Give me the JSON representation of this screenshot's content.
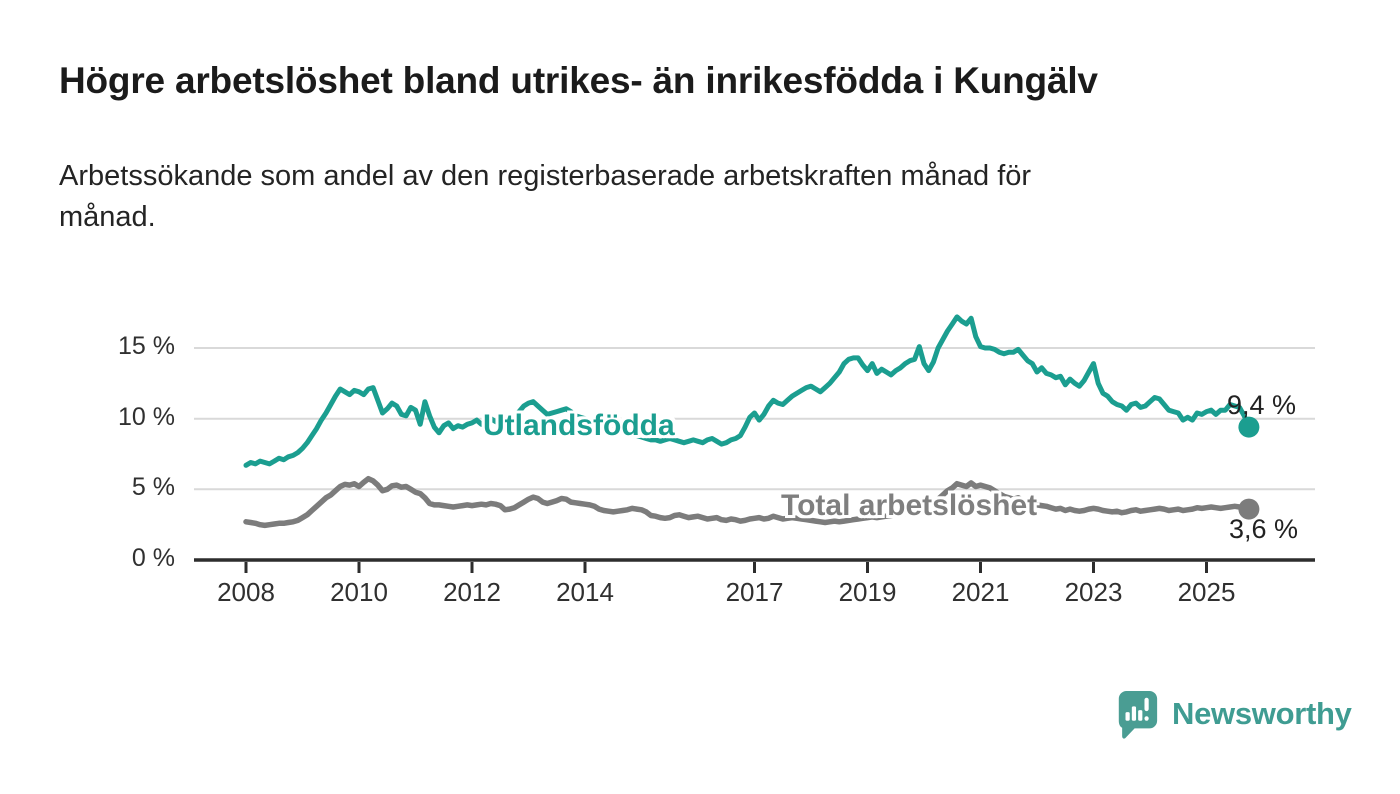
{
  "title": "Högre arbetslöshet bland utrikes- än inrikesfödda i Kungälv",
  "subtitle_lines": [
    "Arbetssökande som andel av den registerbaserade arbetskraften månad för",
    "månad."
  ],
  "logo": {
    "brand": "Newsworthy"
  },
  "colors": {
    "accent_teal": "#1b9e90",
    "series_gray": "#7c7c7c",
    "axis": "#2d2d2d",
    "gridline": "#d9d9d9",
    "logo_teal": "#4a9d93",
    "text_dark": "#1b1b1b"
  },
  "chart_data": {
    "type": "line",
    "frequency": "monthly",
    "x_start": "2008-01",
    "x_end": "2025-10",
    "xlabel": "",
    "ylabel": "",
    "ylim": [
      0,
      17.5
    ],
    "grid": "horizontal",
    "legend_position": "inline",
    "x_tick_years": [
      2008,
      2010,
      2012,
      2014,
      2017,
      2019,
      2021,
      2023,
      2025
    ],
    "x_tick_labels": [
      "2008",
      "2010",
      "2012",
      "2014",
      "2017",
      "2019",
      "2021",
      "2023",
      "2025"
    ],
    "y_ticks": [
      {
        "value": 0,
        "label": "0 %"
      },
      {
        "value": 5,
        "label": "5 %"
      },
      {
        "value": 10,
        "label": "10 %"
      },
      {
        "value": 15,
        "label": "15 %"
      }
    ],
    "series": [
      {
        "name": "Utlandsfödda",
        "color": "#1b9e90",
        "end_value": 9.4,
        "end_label": "9,4 %",
        "values": [
          6.7,
          6.9,
          6.8,
          7.0,
          6.9,
          6.8,
          7.0,
          7.2,
          7.1,
          7.3,
          7.4,
          7.6,
          7.9,
          8.3,
          8.8,
          9.3,
          9.9,
          10.4,
          11.0,
          11.6,
          12.1,
          11.9,
          11.7,
          12.0,
          11.9,
          11.7,
          12.1,
          12.2,
          11.3,
          10.4,
          10.7,
          11.1,
          10.9,
          10.3,
          10.2,
          10.8,
          10.6,
          9.6,
          11.2,
          10.2,
          9.4,
          9.0,
          9.5,
          9.7,
          9.3,
          9.5,
          9.4,
          9.6,
          9.7,
          9.9,
          9.6,
          9.9,
          10.0,
          9.8,
          9.6,
          9.8,
          10.0,
          10.2,
          10.5,
          10.9,
          11.1,
          11.2,
          10.9,
          10.6,
          10.3,
          10.4,
          10.5,
          10.6,
          10.7,
          10.5,
          10.2,
          10.1,
          10.0,
          9.9,
          9.7,
          9.5,
          9.4,
          9.3,
          9.2,
          9.1,
          9.0,
          9.0,
          8.9,
          8.8,
          8.7,
          8.6,
          8.5,
          8.5,
          8.4,
          8.5,
          8.6,
          8.5,
          8.4,
          8.3,
          8.4,
          8.5,
          8.4,
          8.3,
          8.5,
          8.6,
          8.4,
          8.2,
          8.3,
          8.5,
          8.6,
          8.8,
          9.4,
          10.1,
          10.4,
          9.9,
          10.3,
          10.9,
          11.3,
          11.1,
          11.0,
          11.3,
          11.6,
          11.8,
          12.0,
          12.2,
          12.3,
          12.1,
          11.9,
          12.2,
          12.5,
          12.9,
          13.3,
          13.9,
          14.2,
          14.3,
          14.3,
          13.8,
          13.4,
          13.9,
          13.2,
          13.5,
          13.3,
          13.1,
          13.4,
          13.6,
          13.9,
          14.1,
          14.2,
          15.1,
          13.9,
          13.4,
          14.0,
          15.0,
          15.6,
          16.2,
          16.7,
          17.2,
          16.9,
          16.7,
          17.1,
          15.8,
          15.1,
          15.0,
          15.0,
          14.9,
          14.7,
          14.6,
          14.7,
          14.7,
          14.9,
          14.5,
          14.1,
          13.9,
          13.3,
          13.6,
          13.2,
          13.1,
          12.9,
          13.0,
          12.4,
          12.8,
          12.5,
          12.3,
          12.7,
          13.3,
          13.9,
          12.5,
          11.8,
          11.6,
          11.2,
          11.0,
          10.9,
          10.6,
          11.0,
          11.1,
          10.8,
          10.9,
          11.2,
          11.5,
          11.4,
          11.0,
          10.6,
          10.5,
          10.4,
          9.9,
          10.1,
          9.9,
          10.4,
          10.3,
          10.5,
          10.6,
          10.3,
          10.6,
          10.6,
          11.0,
          10.9,
          10.8,
          10.2,
          9.4
        ]
      },
      {
        "name": "Total arbetslöshet",
        "color": "#7c7c7c",
        "end_value": 3.6,
        "end_label": "3,6 %",
        "values": [
          2.7,
          2.65,
          2.6,
          2.5,
          2.45,
          2.5,
          2.55,
          2.6,
          2.6,
          2.65,
          2.7,
          2.8,
          3.0,
          3.2,
          3.5,
          3.8,
          4.1,
          4.4,
          4.6,
          4.9,
          5.2,
          5.35,
          5.3,
          5.4,
          5.2,
          5.5,
          5.75,
          5.6,
          5.3,
          4.9,
          5.0,
          5.25,
          5.3,
          5.15,
          5.2,
          5.0,
          4.8,
          4.7,
          4.4,
          4.0,
          3.9,
          3.9,
          3.85,
          3.8,
          3.75,
          3.8,
          3.85,
          3.9,
          3.85,
          3.9,
          3.95,
          3.9,
          4.0,
          3.95,
          3.85,
          3.55,
          3.6,
          3.7,
          3.9,
          4.1,
          4.3,
          4.45,
          4.35,
          4.1,
          4.0,
          4.1,
          4.2,
          4.35,
          4.3,
          4.1,
          4.05,
          4.0,
          3.95,
          3.9,
          3.8,
          3.6,
          3.5,
          3.45,
          3.4,
          3.45,
          3.5,
          3.55,
          3.65,
          3.6,
          3.55,
          3.4,
          3.15,
          3.1,
          3.0,
          2.95,
          3.0,
          3.15,
          3.2,
          3.1,
          3.0,
          3.05,
          3.1,
          3.0,
          2.9,
          2.95,
          3.0,
          2.85,
          2.8,
          2.9,
          2.85,
          2.75,
          2.8,
          2.9,
          2.95,
          3.0,
          2.9,
          2.95,
          3.1,
          3.0,
          2.9,
          2.95,
          3.0,
          2.95,
          2.9,
          2.85,
          2.8,
          2.75,
          2.7,
          2.65,
          2.7,
          2.75,
          2.7,
          2.75,
          2.8,
          2.85,
          2.9,
          2.95,
          3.0,
          3.05,
          3.0,
          3.05,
          3.1,
          3.15,
          3.2,
          3.25,
          3.3,
          3.35,
          3.4,
          3.6,
          3.4,
          3.3,
          3.6,
          4.3,
          4.6,
          4.9,
          5.1,
          5.4,
          5.3,
          5.2,
          5.45,
          5.2,
          5.3,
          5.2,
          5.1,
          4.9,
          4.7,
          4.5,
          4.4,
          4.3,
          4.4,
          4.2,
          4.1,
          4.0,
          3.9,
          3.85,
          3.8,
          3.7,
          3.6,
          3.65,
          3.5,
          3.6,
          3.5,
          3.45,
          3.5,
          3.6,
          3.65,
          3.6,
          3.5,
          3.45,
          3.4,
          3.45,
          3.35,
          3.4,
          3.5,
          3.55,
          3.45,
          3.5,
          3.55,
          3.6,
          3.65,
          3.6,
          3.5,
          3.55,
          3.6,
          3.5,
          3.55,
          3.6,
          3.7,
          3.65,
          3.7,
          3.75,
          3.7,
          3.65,
          3.7,
          3.75,
          3.8,
          3.75,
          3.7,
          3.6
        ]
      }
    ]
  }
}
